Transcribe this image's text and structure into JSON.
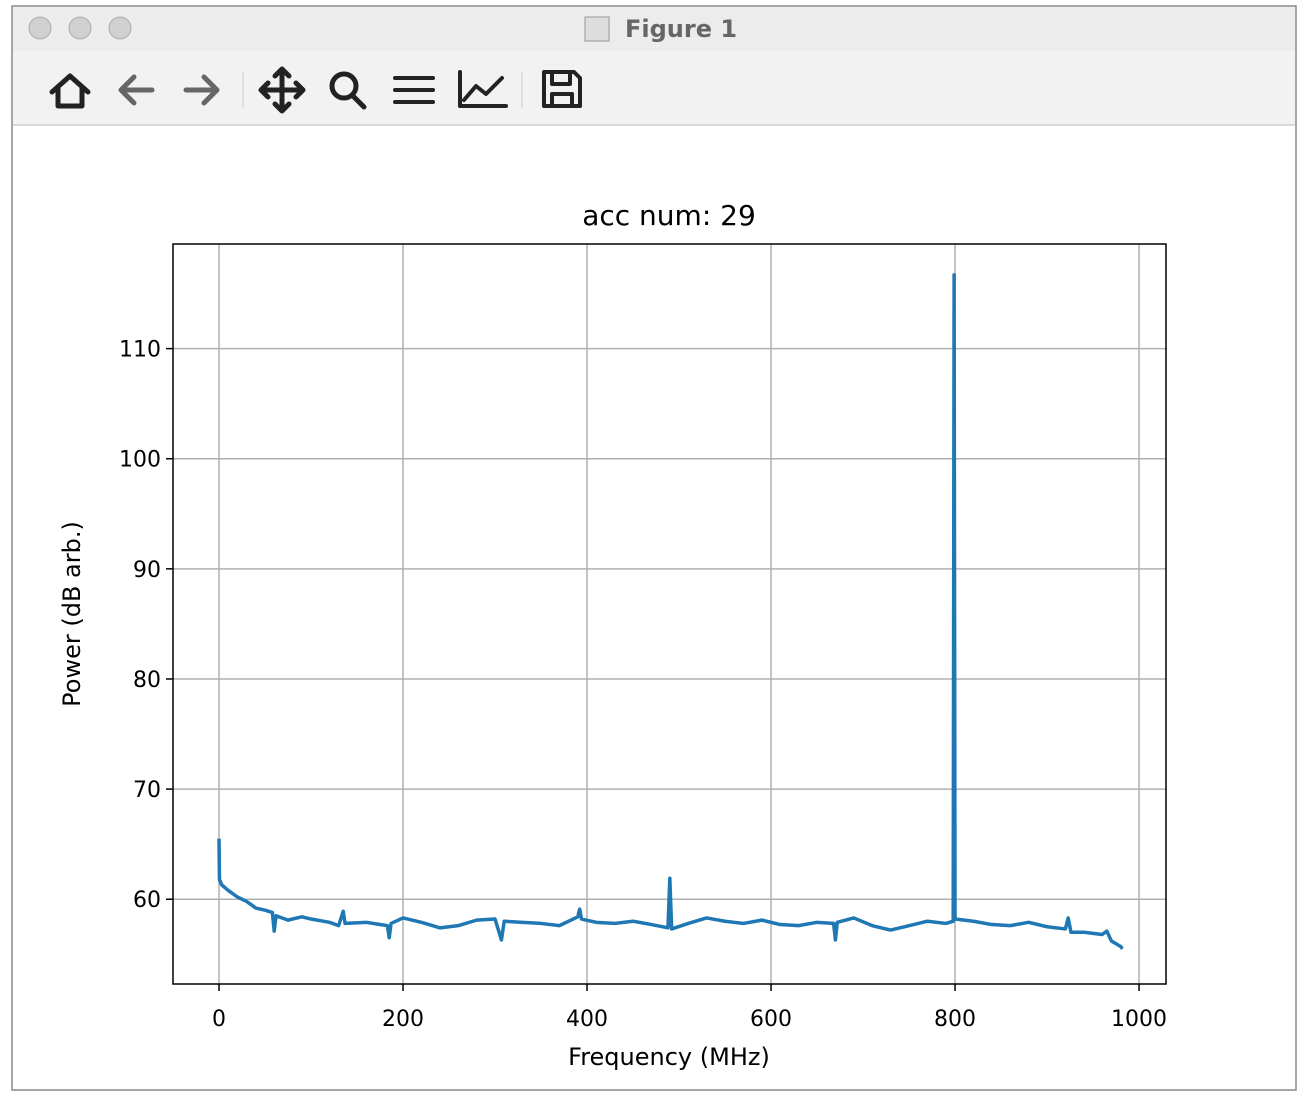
{
  "window": {
    "title": "Figure 1"
  },
  "chart_data": {
    "type": "line",
    "title": "acc num: 29",
    "x_label": "Frequency (MHz)",
    "y_label": "Power (dB arb.)",
    "x": [
      0,
      0.5,
      3,
      10,
      20,
      30,
      40,
      50,
      58,
      60,
      62,
      75,
      90,
      100,
      120,
      130,
      135,
      137,
      160,
      183,
      185,
      187,
      200,
      220,
      240,
      260,
      280,
      300,
      307,
      310,
      330,
      350,
      370,
      390,
      392,
      394,
      410,
      430,
      450,
      470,
      488,
      490,
      492,
      510,
      530,
      550,
      570,
      590,
      610,
      630,
      650,
      668,
      670,
      672,
      690,
      710,
      730,
      750,
      770,
      790,
      798,
      799,
      800,
      820,
      840,
      860,
      880,
      900,
      920,
      923,
      926,
      940,
      960,
      965,
      970,
      980,
      982
    ],
    "values": [
      65.5,
      61.8,
      61.3,
      60.8,
      60.2,
      59.8,
      59.2,
      59,
      58.8,
      57.1,
      58.5,
      58.1,
      58.4,
      58.2,
      57.9,
      57.6,
      58.9,
      57.8,
      57.9,
      57.6,
      56.5,
      57.8,
      58.3,
      57.9,
      57.4,
      57.6,
      58.1,
      58.2,
      56.3,
      58,
      57.9,
      57.8,
      57.6,
      58.4,
      59.1,
      58.2,
      57.9,
      57.8,
      58,
      57.7,
      57.4,
      61.9,
      57.3,
      57.8,
      58.3,
      58,
      57.8,
      58.1,
      57.7,
      57.6,
      57.9,
      57.8,
      56.3,
      57.9,
      58.3,
      57.6,
      57.2,
      57.6,
      58,
      57.8,
      58,
      116.7,
      58.2,
      58,
      57.7,
      57.6,
      57.9,
      57.5,
      57.3,
      58.3,
      57,
      57,
      56.8,
      57.1,
      56.2,
      55.7,
      55.5
    ],
    "color": "#1f77b4",
    "xlim": [
      -50,
      1029.3
    ],
    "xticks": [
      0,
      200,
      400,
      600,
      800,
      1000
    ],
    "ylim": [
      52.3,
      119.5
    ],
    "yticks": [
      60,
      70,
      80,
      90,
      100,
      110
    ],
    "grid": true
  }
}
